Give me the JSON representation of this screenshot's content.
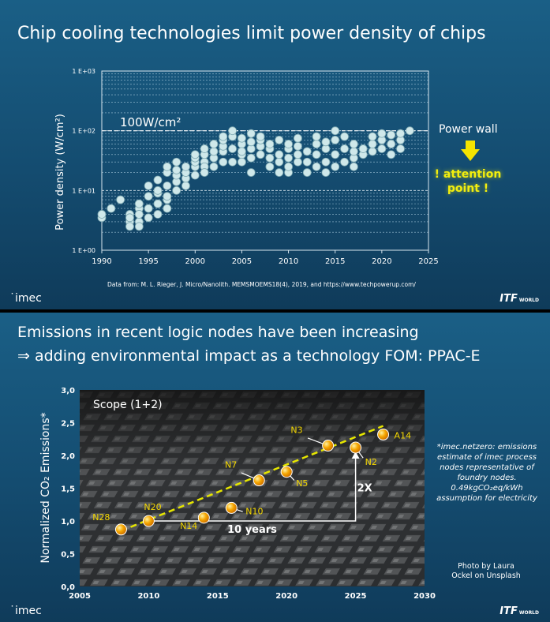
{
  "slide1": {
    "title": "Chip cooling technologies limit power density of chips",
    "logo": "imec",
    "itf": "ITF",
    "itf_small": "WORLD",
    "source": "Data from: M. L. Rieger, J. Micro/Nanolith. MEMSMOEMS18(4), 2019, and https://www.techpowerup.com/",
    "wall_label": "100W/cm²",
    "power_wall": "Power wall",
    "attention": [
      "! attention",
      "point !"
    ],
    "colors": {
      "attention": "#f3ee0e",
      "arrow": "#f5e400",
      "points": "#cfe8ea"
    }
  },
  "slide2": {
    "title_line1": "Emissions in recent logic nodes have been increasing",
    "title_line2": "⇒ adding environmental impact as a technology FOM: PPAC-E",
    "logo": "imec",
    "itf": "ITF",
    "itf_small": "WORLD",
    "scope": "Scope (1+2)",
    "years_label": "10 years",
    "factor_label": "2X",
    "note": [
      "*imec.netzero: emissions",
      "estimate of imec process",
      "nodes representative of",
      "foundry nodes.",
      "0.49kgCO₂eq/kWh",
      "assumption for electricity"
    ],
    "photo": [
      "Photo by Laura",
      "Ockel on Unsplash"
    ],
    "colors": {
      "points": "#f5a500",
      "trend": "#e6e600",
      "labels": "#f5d800"
    }
  },
  "chart_data": [
    {
      "type": "scatter",
      "title": "",
      "xlabel": "",
      "ylabel": "Power density (W/cm²)",
      "xlim": [
        1990,
        2025
      ],
      "ylim": [
        1,
        1000
      ],
      "yscale": "log",
      "xticks": [
        "1990",
        "1995",
        "2000",
        "2005",
        "2010",
        "2015",
        "2020",
        "2025"
      ],
      "yticks": [
        "1 E+00",
        "1 E+01",
        "1 E+02",
        "1 E+03"
      ],
      "grid": true,
      "reference_line": {
        "y": 100,
        "label": "100W/cm²"
      },
      "points": [
        [
          1990,
          3.5
        ],
        [
          1990,
          4
        ],
        [
          1991,
          5
        ],
        [
          1992,
          7
        ],
        [
          1993,
          3
        ],
        [
          1993,
          2.5
        ],
        [
          1993,
          4
        ],
        [
          1993,
          3.5
        ],
        [
          1994,
          5
        ],
        [
          1994,
          3
        ],
        [
          1994,
          2.5
        ],
        [
          1994,
          4
        ],
        [
          1994,
          6
        ],
        [
          1995,
          5
        ],
        [
          1995,
          3.5
        ],
        [
          1995,
          8
        ],
        [
          1995,
          12
        ],
        [
          1996,
          6
        ],
        [
          1996,
          4
        ],
        [
          1996,
          9
        ],
        [
          1996,
          15
        ],
        [
          1996,
          10
        ],
        [
          1997,
          5
        ],
        [
          1997,
          7
        ],
        [
          1997,
          12
        ],
        [
          1997,
          20
        ],
        [
          1997,
          25
        ],
        [
          1997,
          8
        ],
        [
          1998,
          10
        ],
        [
          1998,
          14
        ],
        [
          1998,
          18
        ],
        [
          1998,
          22
        ],
        [
          1998,
          30
        ],
        [
          1999,
          12
        ],
        [
          1999,
          16
        ],
        [
          1999,
          20
        ],
        [
          1999,
          25
        ],
        [
          2000,
          18
        ],
        [
          2000,
          25
        ],
        [
          2000,
          30
        ],
        [
          2000,
          35
        ],
        [
          2000,
          40
        ],
        [
          2001,
          30
        ],
        [
          2001,
          40
        ],
        [
          2001,
          50
        ],
        [
          2001,
          25
        ],
        [
          2001,
          20
        ],
        [
          2002,
          25
        ],
        [
          2002,
          35
        ],
        [
          2002,
          45
        ],
        [
          2002,
          60
        ],
        [
          2003,
          30
        ],
        [
          2003,
          45
        ],
        [
          2003,
          55
        ],
        [
          2003,
          70
        ],
        [
          2003,
          80
        ],
        [
          2004,
          30
        ],
        [
          2004,
          50
        ],
        [
          2004,
          80
        ],
        [
          2004,
          100
        ],
        [
          2005,
          40
        ],
        [
          2005,
          60
        ],
        [
          2005,
          75
        ],
        [
          2005,
          45
        ],
        [
          2005,
          30
        ],
        [
          2006,
          20
        ],
        [
          2006,
          35
        ],
        [
          2006,
          50
        ],
        [
          2006,
          65
        ],
        [
          2006,
          90
        ],
        [
          2007,
          40
        ],
        [
          2007,
          55
        ],
        [
          2007,
          70
        ],
        [
          2007,
          80
        ],
        [
          2008,
          35
        ],
        [
          2008,
          50
        ],
        [
          2008,
          60
        ],
        [
          2008,
          25
        ],
        [
          2009,
          20
        ],
        [
          2009,
          30
        ],
        [
          2009,
          40
        ],
        [
          2009,
          70
        ],
        [
          2010,
          20
        ],
        [
          2010,
          25
        ],
        [
          2010,
          35
        ],
        [
          2010,
          50
        ],
        [
          2010,
          60
        ],
        [
          2011,
          30
        ],
        [
          2011,
          40
        ],
        [
          2011,
          55
        ],
        [
          2011,
          75
        ],
        [
          2012,
          20
        ],
        [
          2012,
          30
        ],
        [
          2012,
          45
        ],
        [
          2013,
          25
        ],
        [
          2013,
          40
        ],
        [
          2013,
          60
        ],
        [
          2013,
          80
        ],
        [
          2014,
          20
        ],
        [
          2014,
          30
        ],
        [
          2014,
          50
        ],
        [
          2014,
          65
        ],
        [
          2015,
          25
        ],
        [
          2015,
          40
        ],
        [
          2015,
          70
        ],
        [
          2015,
          100
        ],
        [
          2016,
          30
        ],
        [
          2016,
          50
        ],
        [
          2016,
          80
        ],
        [
          2017,
          25
        ],
        [
          2017,
          35
        ],
        [
          2017,
          45
        ],
        [
          2017,
          60
        ],
        [
          2018,
          40
        ],
        [
          2018,
          50
        ],
        [
          2019,
          45
        ],
        [
          2019,
          60
        ],
        [
          2019,
          80
        ],
        [
          2020,
          50
        ],
        [
          2020,
          70
        ],
        [
          2020,
          90
        ],
        [
          2021,
          40
        ],
        [
          2021,
          60
        ],
        [
          2021,
          85
        ],
        [
          2022,
          50
        ],
        [
          2022,
          70
        ],
        [
          2022,
          90
        ],
        [
          2023,
          100
        ]
      ]
    },
    {
      "type": "scatter",
      "title": "",
      "xlabel": "",
      "ylabel": "Normalized CO₂ Emissions*",
      "xlim": [
        2005,
        2030
      ],
      "ylim": [
        0,
        3
      ],
      "xticks": [
        "2005",
        "2010",
        "2015",
        "2020",
        "2025",
        "2030"
      ],
      "yticks": [
        "0,0",
        "0,5",
        "1,0",
        "1,5",
        "2,0",
        "2,5",
        "3,0"
      ],
      "points": [
        {
          "label": "N28",
          "x": 2008,
          "y": 0.87
        },
        {
          "label": "N20",
          "x": 2010,
          "y": 1.0
        },
        {
          "label": "N14",
          "x": 2014,
          "y": 1.05
        },
        {
          "label": "N10",
          "x": 2016,
          "y": 1.2
        },
        {
          "label": "N7",
          "x": 2018,
          "y": 1.62
        },
        {
          "label": "N5",
          "x": 2020,
          "y": 1.75
        },
        {
          "label": "N3",
          "x": 2023,
          "y": 2.15
        },
        {
          "label": "N2",
          "x": 2025,
          "y": 2.12
        },
        {
          "label": "A14",
          "x": 2027,
          "y": 2.32
        }
      ],
      "trend": {
        "x": [
          2008,
          2027
        ],
        "y": [
          0.85,
          2.45
        ]
      }
    }
  ]
}
